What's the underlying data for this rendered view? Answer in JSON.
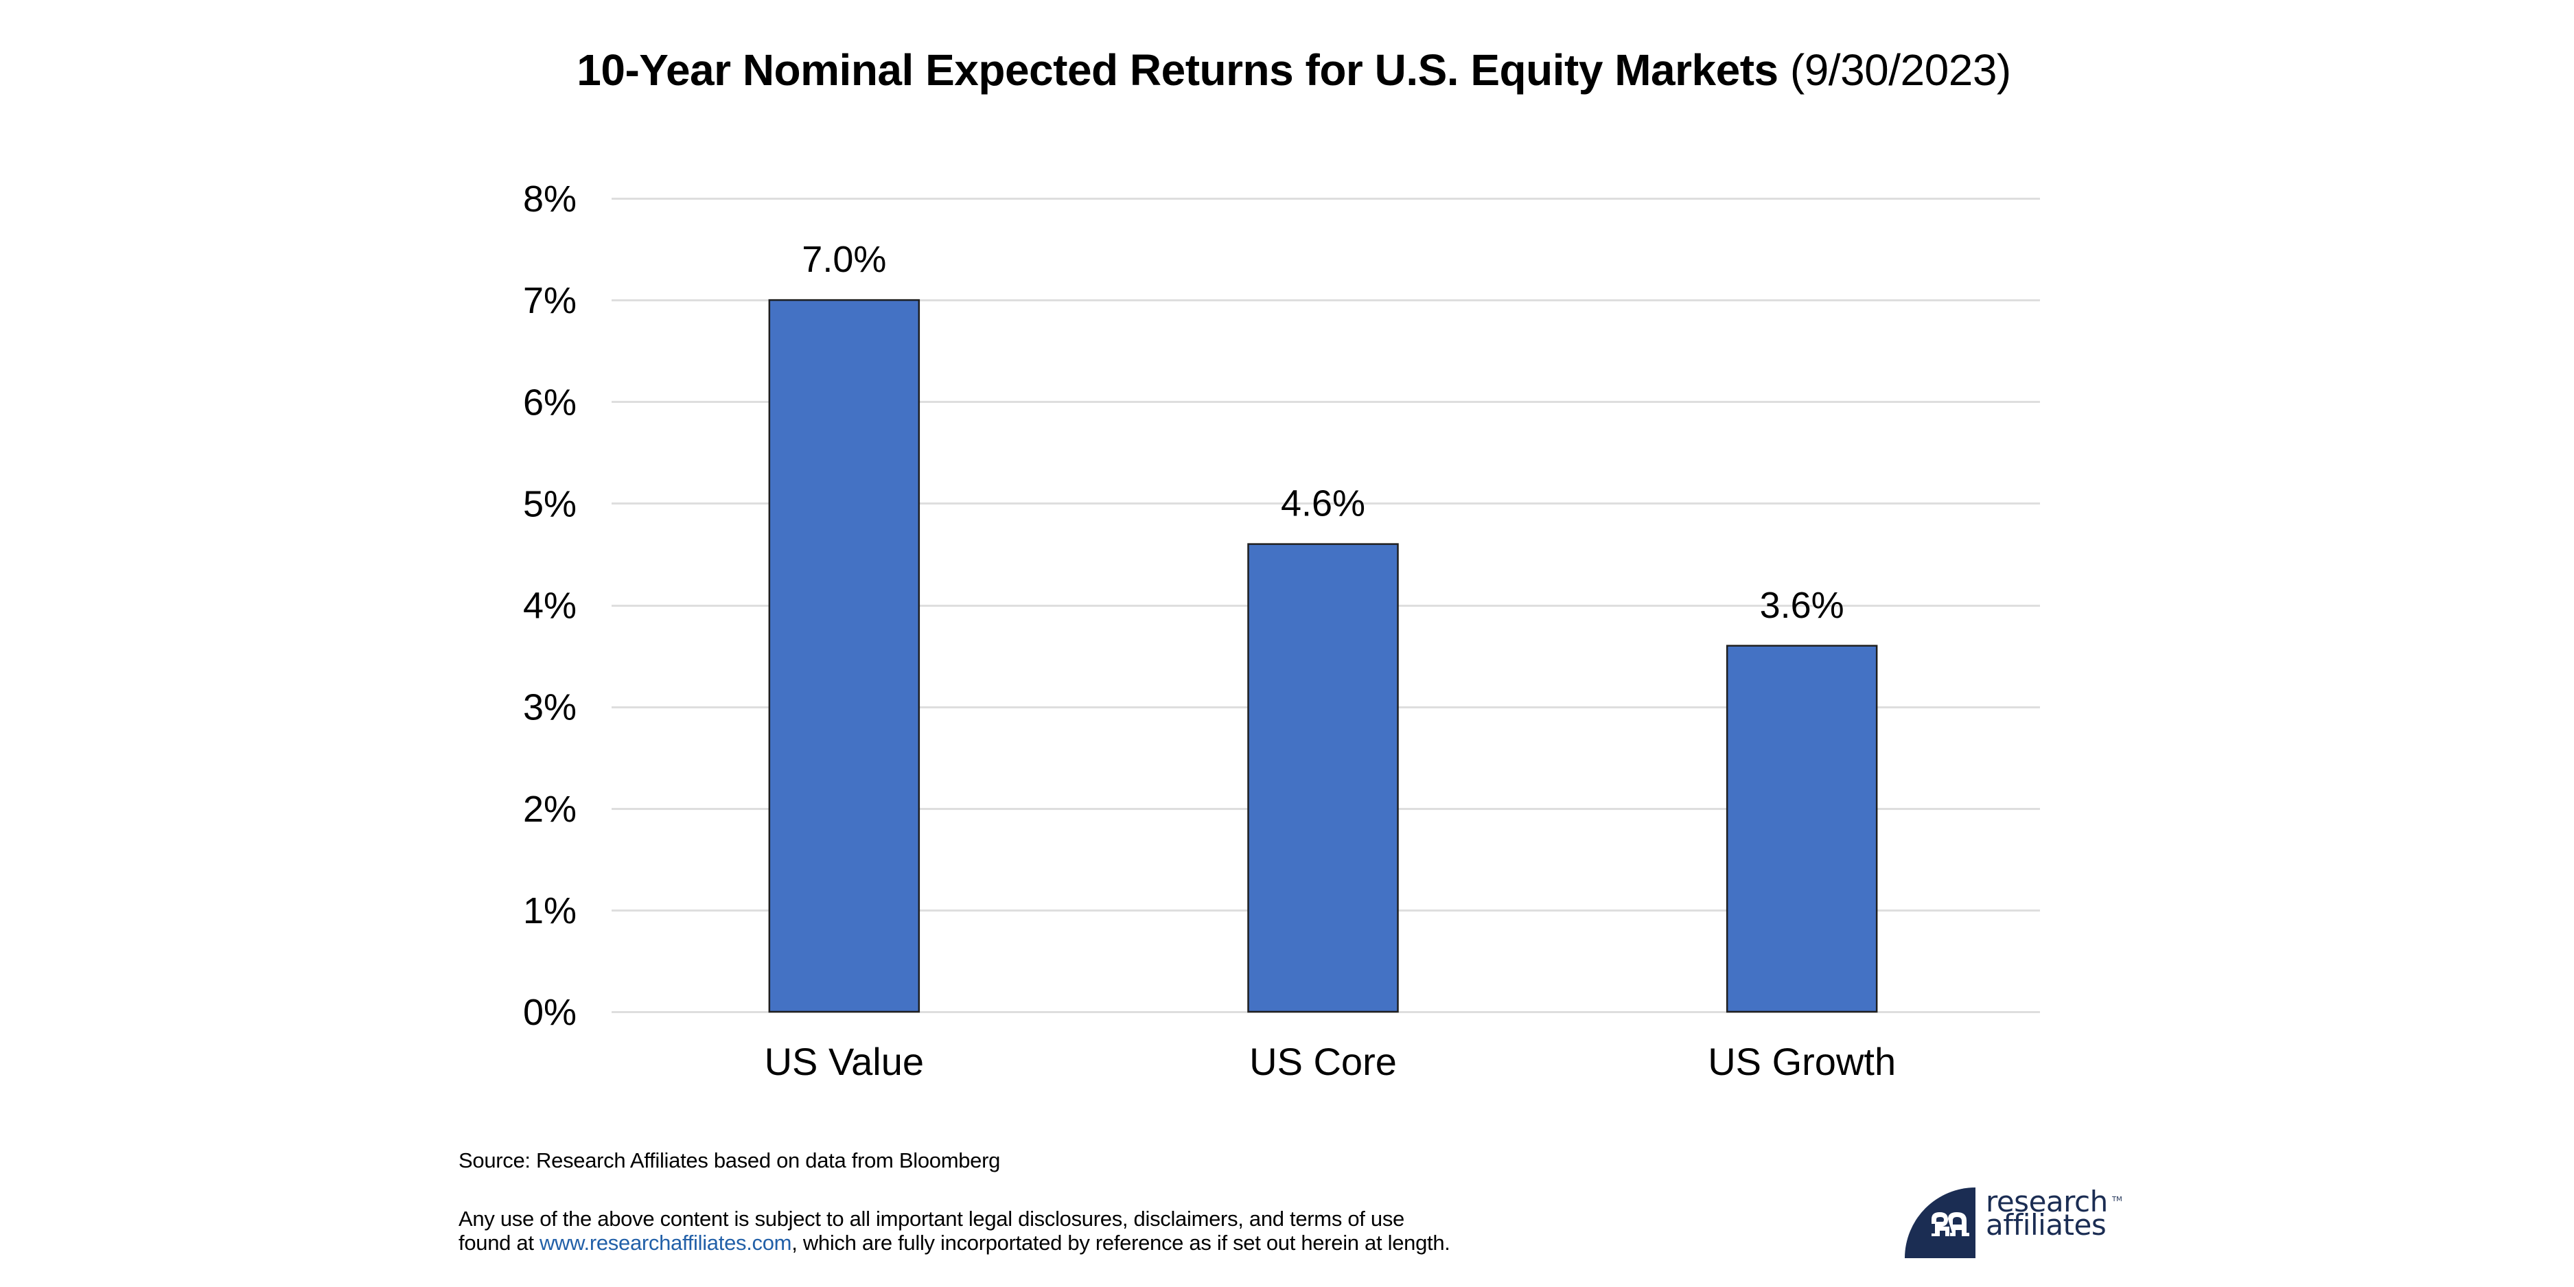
{
  "chart_data": {
    "type": "bar",
    "title": "10-Year Nominal Expected Returns for U.S. Equity Markets",
    "title_date": "(9/30/2023)",
    "categories": [
      "US Value",
      "US Core",
      "US Growth"
    ],
    "values": [
      7.0,
      4.6,
      3.6
    ],
    "value_labels": [
      "7.0%",
      "4.6%",
      "3.6%"
    ],
    "xlabel": "",
    "ylabel": "",
    "ylim": [
      0,
      8
    ],
    "yticks": [
      0,
      1,
      2,
      3,
      4,
      5,
      6,
      7,
      8
    ],
    "ytick_labels": [
      "0%",
      "1%",
      "2%",
      "3%",
      "4%",
      "5%",
      "6%",
      "7%",
      "8%"
    ],
    "grid": true,
    "legend": "none",
    "bar_color": "#4472c4",
    "bar_edge_color": "#1f1f1f",
    "grid_color": "#dedede"
  },
  "footer": {
    "source": "Source: Research Affiliates based on data from Bloomberg",
    "disclaimer_line1": "Any use of the above content is subject to all important legal disclosures, disclaimers, and terms of use",
    "disclaimer_line2_prefix": "found at ",
    "disclaimer_link": "www.researchaffiliates.com",
    "disclaimer_line2_suffix": ", which are fully incorportated by reference as if set out herein at length.",
    "link_color": "#2260a8"
  },
  "logo": {
    "line1": "research",
    "line2": "affiliates",
    "trademark": "TM",
    "monogram": "RA",
    "brand_color": "#1b2d53"
  }
}
